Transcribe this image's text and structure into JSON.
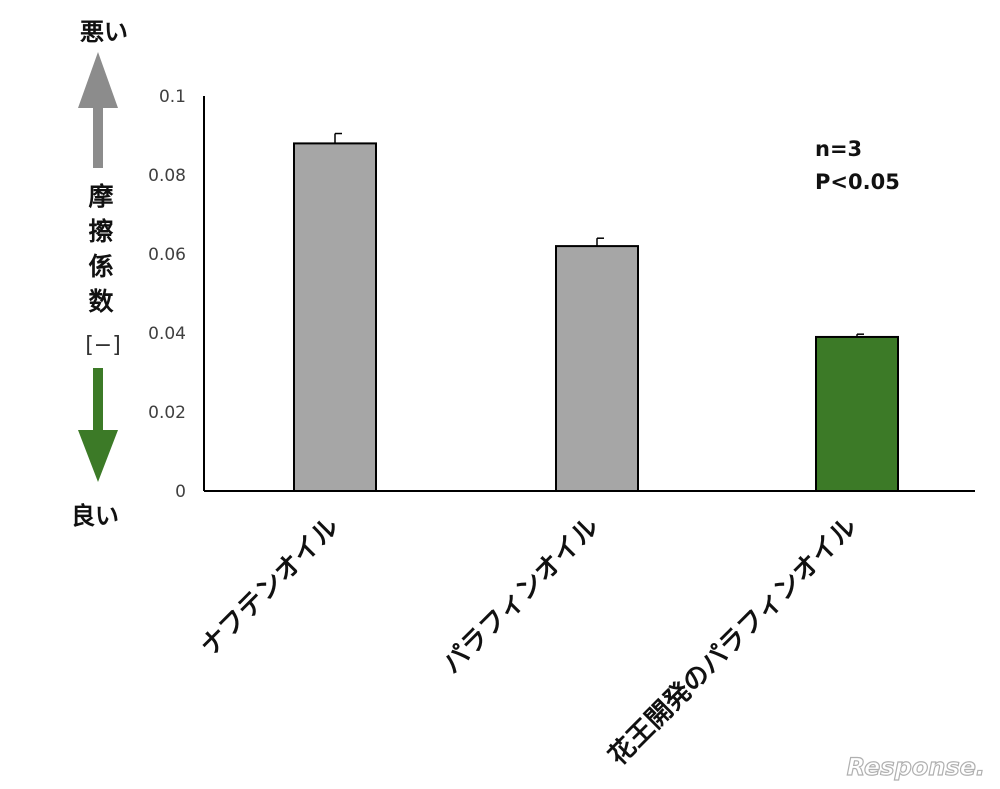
{
  "chart_data": {
    "type": "bar",
    "ylabel": "摩擦係数",
    "yunit": "[−]",
    "top_label": "悪い",
    "bottom_label": "良い",
    "categories": [
      "ナフテンオイル",
      "パラフィンオイル",
      "花王開発のパラフィンオイル"
    ],
    "values": [
      0.088,
      0.062,
      0.039
    ],
    "errors": [
      0.0025,
      0.002,
      0.0007
    ],
    "bar_colors": [
      "#a6a6a6",
      "#a6a6a6",
      "#3c7a27"
    ],
    "ylim": [
      0,
      0.1
    ],
    "yticks": [
      "0",
      "0.02",
      "0.04",
      "0.06",
      "0.08",
      "0.1"
    ],
    "annotations": [
      "n=3",
      "P<0.05"
    ],
    "grid": false,
    "legend": "none"
  },
  "colors": {
    "worse_arrow": "#8c8c8c",
    "better_arrow": "#3c7a27"
  },
  "watermark": "Response."
}
